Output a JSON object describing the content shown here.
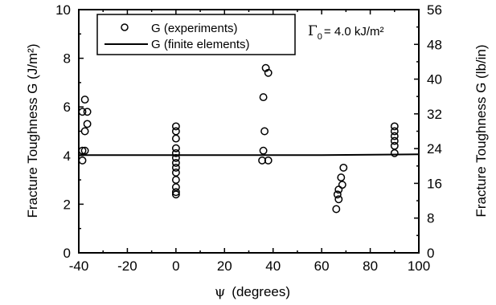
{
  "chart_data": {
    "type": "scatter",
    "xlabel_symbol": "ψ",
    "xlabel_text": "(degrees)",
    "ylabel_left": "Fracture Toughness G (J/m²)",
    "ylabel_right": "Fracture Toughness G (lb/in)",
    "xlim": [
      -40,
      100
    ],
    "ylim": [
      0,
      10
    ],
    "ylim_right": [
      0,
      56
    ],
    "x_ticks": [
      -40,
      -20,
      0,
      20,
      40,
      60,
      80,
      100
    ],
    "x_tick_labels": [
      "-40",
      "-20",
      "0",
      "20",
      "40",
      "60",
      "80",
      "100"
    ],
    "y_ticks": [
      0,
      2,
      4,
      6,
      8,
      10
    ],
    "y_tick_labels": [
      "0",
      "2",
      "4",
      "6",
      "8",
      "10"
    ],
    "y_right_ticks": [
      0,
      8,
      16,
      24,
      32,
      40,
      48,
      56
    ],
    "y_right_tick_labels": [
      "0",
      "8",
      "16",
      "24",
      "32",
      "40",
      "48",
      "56"
    ],
    "annotation": {
      "symbol": "Γ",
      "subscript": "0",
      "text": "= 4.0 kJ/m²"
    },
    "legend": {
      "position": "top-left",
      "entries": [
        "G (experiments)",
        "G (finite elements)"
      ]
    },
    "series": [
      {
        "name": "G (experiments)",
        "marker": "open-circle",
        "points": [
          [
            -37.5,
            6.3
          ],
          [
            -38.5,
            5.8
          ],
          [
            -36.5,
            5.8
          ],
          [
            -36.5,
            5.3
          ],
          [
            -37.5,
            5.0
          ],
          [
            -38.5,
            4.2
          ],
          [
            -37.5,
            4.2
          ],
          [
            -38.5,
            3.8
          ],
          [
            0,
            5.2
          ],
          [
            0,
            5.0
          ],
          [
            0,
            4.7
          ],
          [
            0,
            4.3
          ],
          [
            0,
            4.1
          ],
          [
            0,
            3.9
          ],
          [
            0,
            3.7
          ],
          [
            0,
            3.5
          ],
          [
            0,
            3.3
          ],
          [
            0,
            3.0
          ],
          [
            0,
            2.7
          ],
          [
            0,
            2.5
          ],
          [
            0,
            2.4
          ],
          [
            37,
            7.6
          ],
          [
            38,
            7.4
          ],
          [
            36,
            6.4
          ],
          [
            36.5,
            5.0
          ],
          [
            36,
            4.2
          ],
          [
            35.5,
            3.8
          ],
          [
            38,
            3.8
          ],
          [
            69,
            3.5
          ],
          [
            68,
            3.1
          ],
          [
            68.5,
            2.8
          ],
          [
            67,
            2.6
          ],
          [
            66.5,
            2.4
          ],
          [
            67,
            2.2
          ],
          [
            66,
            1.8
          ],
          [
            90,
            5.2
          ],
          [
            90,
            5.0
          ],
          [
            90,
            4.8
          ],
          [
            90,
            4.6
          ],
          [
            90,
            4.4
          ],
          [
            90,
            4.1
          ]
        ]
      },
      {
        "name": "G (finite elements)",
        "style": "solid-line",
        "points": [
          [
            -40,
            4.02
          ],
          [
            60,
            4.02
          ],
          [
            100,
            4.05
          ]
        ]
      }
    ]
  }
}
